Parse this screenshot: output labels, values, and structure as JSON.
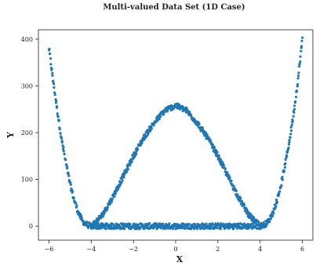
{
  "chart_data": {
    "type": "scatter",
    "title": "Multi-valued Data Set (1D Case)",
    "xlabel": "X",
    "ylabel": "Y",
    "xlim": [
      -6.5,
      6.5
    ],
    "ylim": [
      -30,
      420
    ],
    "x_ticks": [
      -6,
      -4,
      -2,
      0,
      2,
      4,
      6
    ],
    "x_tick_labels": [
      "−6",
      "−4",
      "−2",
      "0",
      "2",
      "4",
      "6"
    ],
    "y_ticks": [
      0,
      100,
      200,
      300,
      400
    ],
    "y_tick_labels": [
      "0",
      "100",
      "200",
      "300",
      "400"
    ],
    "grid": false,
    "marker_color": "#1f77b4",
    "series": [
      {
        "description_x_range": [
          -6,
          6
        ],
        "x": [
          -6.0,
          -5.8,
          -5.6,
          -5.4,
          -5.2,
          -5.0,
          -4.8,
          -4.6,
          -4.4,
          -4.2,
          -4.0,
          -3.5,
          -3.0,
          -2.5,
          -2.0,
          -1.5,
          -1.0,
          -0.5,
          0.0,
          0.5,
          1.0,
          1.5,
          2.0,
          2.5,
          3.0,
          3.5,
          4.0,
          4.2,
          4.4,
          4.6,
          4.8,
          5.0,
          5.2,
          5.4,
          5.6,
          5.8,
          6.0
        ],
        "y": [
          380,
          310,
          245,
          185,
          135,
          90,
          55,
          28,
          10,
          3,
          0,
          0,
          0,
          0,
          0,
          0,
          0,
          0,
          0,
          0,
          0,
          0,
          0,
          0,
          0,
          0,
          0,
          3,
          10,
          28,
          55,
          90,
          135,
          185,
          245,
          315,
          400
        ]
      },
      {
        "description_x_range": [
          -4,
          4
        ],
        "x": [
          -4.0,
          -3.5,
          -3.0,
          -2.5,
          -2.0,
          -1.5,
          -1.0,
          -0.5,
          0.0,
          0.5,
          1.0,
          1.5,
          2.0,
          2.5,
          3.0,
          3.5,
          4.0
        ],
        "y": [
          0,
          22,
          60,
          105,
          150,
          190,
          222,
          248,
          258,
          248,
          222,
          190,
          150,
          105,
          60,
          22,
          0
        ]
      }
    ]
  }
}
